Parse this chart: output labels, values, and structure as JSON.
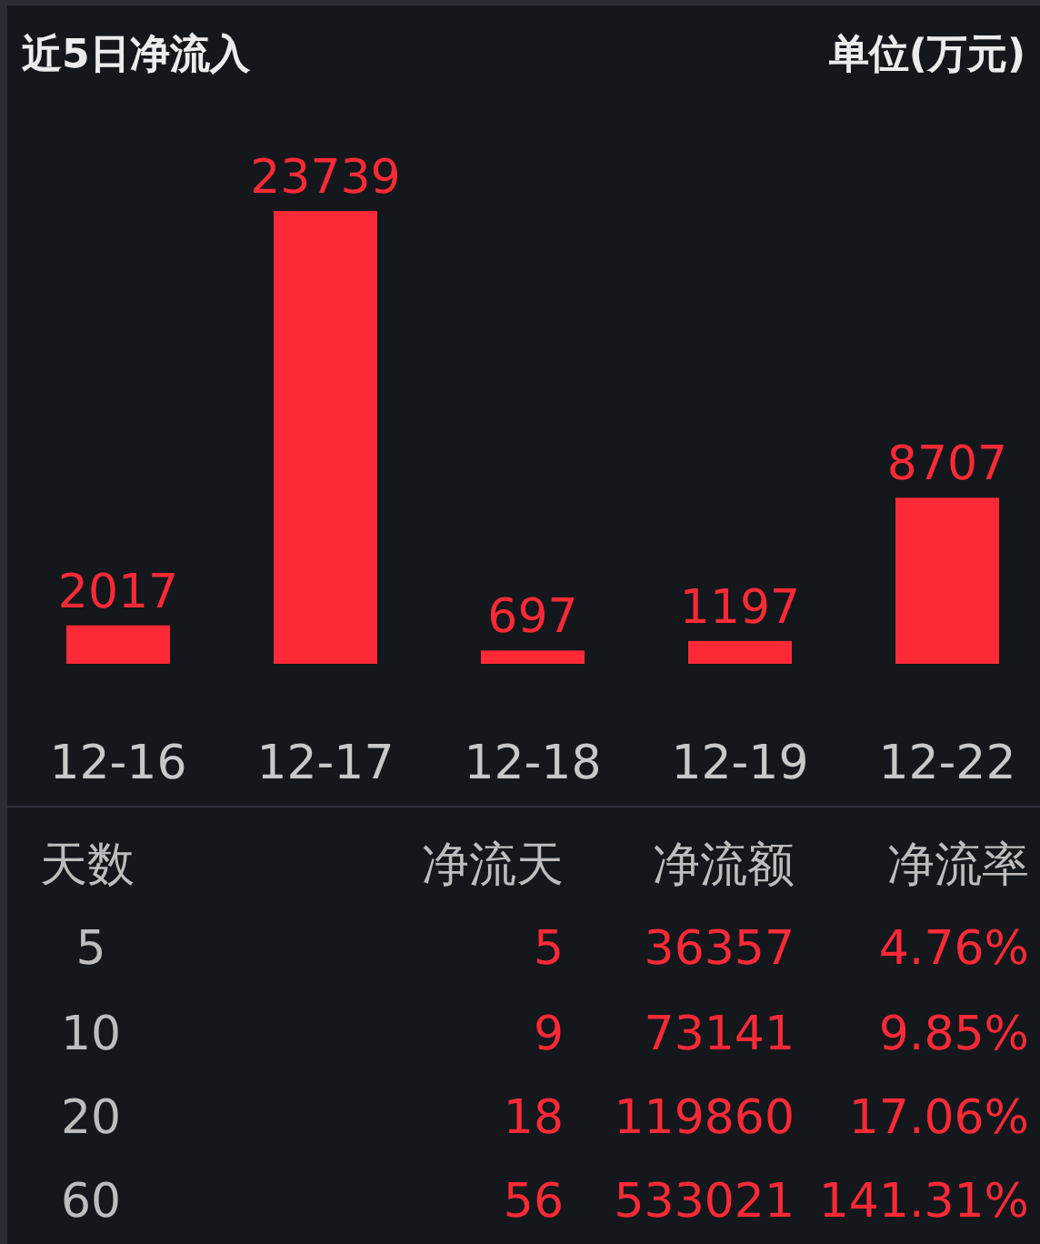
{
  "chart_data": [
    {
      "type": "bar",
      "title": "近5日净流入",
      "subtitle": "单位(万元)",
      "categories": [
        "12-16",
        "12-17",
        "12-18",
        "12-19",
        "12-22"
      ],
      "values": [
        2017,
        23739,
        697,
        1197,
        8707
      ],
      "color": "#fc2a36",
      "data_labels": true
    },
    {
      "type": "other",
      "annotations": [
        "天数",
        "净流天",
        "净流额",
        "净流率",
        "5",
        "5",
        "36357",
        "4.76%",
        "10",
        "9",
        "73141",
        "9.85%",
        "20",
        "18",
        "119860",
        "17.06%",
        "60",
        "56",
        "533021",
        "141.31%"
      ]
    }
  ]
}
